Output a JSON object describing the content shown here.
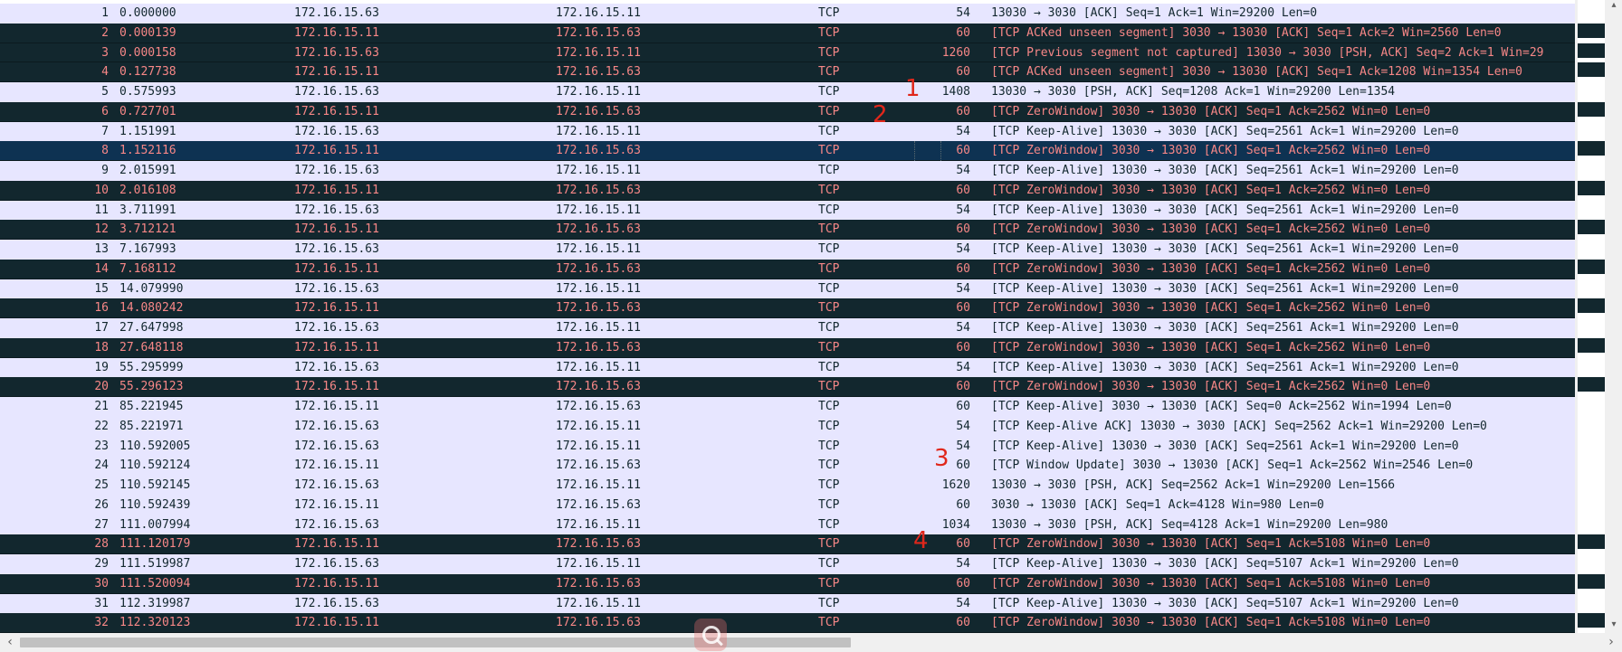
{
  "colors": {
    "light_row_bg": "#e7e6ff",
    "light_row_text": "#12272e",
    "dark_row_bg": "#12272e",
    "dark_row_text": "#f78787",
    "selected_row_bg": "#0e3252",
    "annotation_red": "#e0271b"
  },
  "packets": [
    {
      "no": "1",
      "time": "0.000000",
      "src": "172.16.15.63",
      "dst": "172.16.15.11",
      "proto": "TCP",
      "len": "54",
      "info": "13030 → 3030 [ACK] Seq=1 Ack=1 Win=29200 Len=0",
      "style": "light"
    },
    {
      "no": "2",
      "time": "0.000139",
      "src": "172.16.15.11",
      "dst": "172.16.15.63",
      "proto": "TCP",
      "len": "60",
      "info": "[TCP ACKed unseen segment] 3030 → 13030 [ACK] Seq=1 Ack=2 Win=2560 Len=0",
      "style": "dark"
    },
    {
      "no": "3",
      "time": "0.000158",
      "src": "172.16.15.63",
      "dst": "172.16.15.11",
      "proto": "TCP",
      "len": "1260",
      "info": "[TCP Previous segment not captured] 13030 → 3030 [PSH, ACK] Seq=2 Ack=1 Win=29",
      "style": "dark"
    },
    {
      "no": "4",
      "time": "0.127738",
      "src": "172.16.15.11",
      "dst": "172.16.15.63",
      "proto": "TCP",
      "len": "60",
      "info": "[TCP ACKed unseen segment] 3030 → 13030 [ACK] Seq=1 Ack=1208 Win=1354 Len=0",
      "style": "dark"
    },
    {
      "no": "5",
      "time": "0.575993",
      "src": "172.16.15.63",
      "dst": "172.16.15.11",
      "proto": "TCP",
      "len": "1408",
      "info": "13030 → 3030 [PSH, ACK] Seq=1208 Ack=1 Win=29200 Len=1354",
      "style": "light"
    },
    {
      "no": "6",
      "time": "0.727701",
      "src": "172.16.15.11",
      "dst": "172.16.15.63",
      "proto": "TCP",
      "len": "60",
      "info": "[TCP ZeroWindow] 3030 → 13030 [ACK] Seq=1 Ack=2562 Win=0 Len=0",
      "style": "dark"
    },
    {
      "no": "7",
      "time": "1.151991",
      "src": "172.16.15.63",
      "dst": "172.16.15.11",
      "proto": "TCP",
      "len": "54",
      "info": "[TCP Keep-Alive] 13030 → 3030 [ACK] Seq=2561 Ack=1 Win=29200 Len=0",
      "style": "light"
    },
    {
      "no": "8",
      "time": "1.152116",
      "src": "172.16.15.11",
      "dst": "172.16.15.63",
      "proto": "TCP",
      "len": "60",
      "info": "[TCP ZeroWindow] 3030 → 13030 [ACK] Seq=1 Ack=2562 Win=0 Len=0",
      "style": "selected"
    },
    {
      "no": "9",
      "time": "2.015991",
      "src": "172.16.15.63",
      "dst": "172.16.15.11",
      "proto": "TCP",
      "len": "54",
      "info": "[TCP Keep-Alive] 13030 → 3030 [ACK] Seq=2561 Ack=1 Win=29200 Len=0",
      "style": "light"
    },
    {
      "no": "10",
      "time": "2.016108",
      "src": "172.16.15.11",
      "dst": "172.16.15.63",
      "proto": "TCP",
      "len": "60",
      "info": "[TCP ZeroWindow] 3030 → 13030 [ACK] Seq=1 Ack=2562 Win=0 Len=0",
      "style": "dark"
    },
    {
      "no": "11",
      "time": "3.711991",
      "src": "172.16.15.63",
      "dst": "172.16.15.11",
      "proto": "TCP",
      "len": "54",
      "info": "[TCP Keep-Alive] 13030 → 3030 [ACK] Seq=2561 Ack=1 Win=29200 Len=0",
      "style": "light"
    },
    {
      "no": "12",
      "time": "3.712121",
      "src": "172.16.15.11",
      "dst": "172.16.15.63",
      "proto": "TCP",
      "len": "60",
      "info": "[TCP ZeroWindow] 3030 → 13030 [ACK] Seq=1 Ack=2562 Win=0 Len=0",
      "style": "dark"
    },
    {
      "no": "13",
      "time": "7.167993",
      "src": "172.16.15.63",
      "dst": "172.16.15.11",
      "proto": "TCP",
      "len": "54",
      "info": "[TCP Keep-Alive] 13030 → 3030 [ACK] Seq=2561 Ack=1 Win=29200 Len=0",
      "style": "light"
    },
    {
      "no": "14",
      "time": "7.168112",
      "src": "172.16.15.11",
      "dst": "172.16.15.63",
      "proto": "TCP",
      "len": "60",
      "info": "[TCP ZeroWindow] 3030 → 13030 [ACK] Seq=1 Ack=2562 Win=0 Len=0",
      "style": "dark"
    },
    {
      "no": "15",
      "time": "14.079990",
      "src": "172.16.15.63",
      "dst": "172.16.15.11",
      "proto": "TCP",
      "len": "54",
      "info": "[TCP Keep-Alive] 13030 → 3030 [ACK] Seq=2561 Ack=1 Win=29200 Len=0",
      "style": "light"
    },
    {
      "no": "16",
      "time": "14.080242",
      "src": "172.16.15.11",
      "dst": "172.16.15.63",
      "proto": "TCP",
      "len": "60",
      "info": "[TCP ZeroWindow] 3030 → 13030 [ACK] Seq=1 Ack=2562 Win=0 Len=0",
      "style": "dark"
    },
    {
      "no": "17",
      "time": "27.647998",
      "src": "172.16.15.63",
      "dst": "172.16.15.11",
      "proto": "TCP",
      "len": "54",
      "info": "[TCP Keep-Alive] 13030 → 3030 [ACK] Seq=2561 Ack=1 Win=29200 Len=0",
      "style": "light"
    },
    {
      "no": "18",
      "time": "27.648118",
      "src": "172.16.15.11",
      "dst": "172.16.15.63",
      "proto": "TCP",
      "len": "60",
      "info": "[TCP ZeroWindow] 3030 → 13030 [ACK] Seq=1 Ack=2562 Win=0 Len=0",
      "style": "dark"
    },
    {
      "no": "19",
      "time": "55.295999",
      "src": "172.16.15.63",
      "dst": "172.16.15.11",
      "proto": "TCP",
      "len": "54",
      "info": "[TCP Keep-Alive] 13030 → 3030 [ACK] Seq=2561 Ack=1 Win=29200 Len=0",
      "style": "light"
    },
    {
      "no": "20",
      "time": "55.296123",
      "src": "172.16.15.11",
      "dst": "172.16.15.63",
      "proto": "TCP",
      "len": "60",
      "info": "[TCP ZeroWindow] 3030 → 13030 [ACK] Seq=1 Ack=2562 Win=0 Len=0",
      "style": "dark"
    },
    {
      "no": "21",
      "time": "85.221945",
      "src": "172.16.15.11",
      "dst": "172.16.15.63",
      "proto": "TCP",
      "len": "60",
      "info": "[TCP Keep-Alive] 3030 → 13030 [ACK] Seq=0 Ack=2562 Win=1994 Len=0",
      "style": "light"
    },
    {
      "no": "22",
      "time": "85.221971",
      "src": "172.16.15.63",
      "dst": "172.16.15.11",
      "proto": "TCP",
      "len": "54",
      "info": "[TCP Keep-Alive ACK] 13030 → 3030 [ACK] Seq=2562 Ack=1 Win=29200 Len=0",
      "style": "light"
    },
    {
      "no": "23",
      "time": "110.592005",
      "src": "172.16.15.63",
      "dst": "172.16.15.11",
      "proto": "TCP",
      "len": "54",
      "info": "[TCP Keep-Alive] 13030 → 3030 [ACK] Seq=2561 Ack=1 Win=29200 Len=0",
      "style": "light"
    },
    {
      "no": "24",
      "time": "110.592124",
      "src": "172.16.15.11",
      "dst": "172.16.15.63",
      "proto": "TCP",
      "len": "60",
      "info": "[TCP Window Update] 3030 → 13030 [ACK] Seq=1 Ack=2562 Win=2546 Len=0",
      "style": "light"
    },
    {
      "no": "25",
      "time": "110.592145",
      "src": "172.16.15.63",
      "dst": "172.16.15.11",
      "proto": "TCP",
      "len": "1620",
      "info": "13030 → 3030 [PSH, ACK] Seq=2562 Ack=1 Win=29200 Len=1566",
      "style": "light"
    },
    {
      "no": "26",
      "time": "110.592439",
      "src": "172.16.15.11",
      "dst": "172.16.15.63",
      "proto": "TCP",
      "len": "60",
      "info": "3030 → 13030 [ACK] Seq=1 Ack=4128 Win=980 Len=0",
      "style": "light"
    },
    {
      "no": "27",
      "time": "111.007994",
      "src": "172.16.15.63",
      "dst": "172.16.15.11",
      "proto": "TCP",
      "len": "1034",
      "info": "13030 → 3030 [PSH, ACK] Seq=4128 Ack=1 Win=29200 Len=980",
      "style": "light"
    },
    {
      "no": "28",
      "time": "111.120179",
      "src": "172.16.15.11",
      "dst": "172.16.15.63",
      "proto": "TCP",
      "len": "60",
      "info": "[TCP ZeroWindow] 3030 → 13030 [ACK] Seq=1 Ack=5108 Win=0 Len=0",
      "style": "dark"
    },
    {
      "no": "29",
      "time": "111.519987",
      "src": "172.16.15.63",
      "dst": "172.16.15.11",
      "proto": "TCP",
      "len": "54",
      "info": "[TCP Keep-Alive] 13030 → 3030 [ACK] Seq=5107 Ack=1 Win=29200 Len=0",
      "style": "light"
    },
    {
      "no": "30",
      "time": "111.520094",
      "src": "172.16.15.11",
      "dst": "172.16.15.63",
      "proto": "TCP",
      "len": "60",
      "info": "[TCP ZeroWindow] 3030 → 13030 [ACK] Seq=1 Ack=5108 Win=0 Len=0",
      "style": "dark"
    },
    {
      "no": "31",
      "time": "112.319987",
      "src": "172.16.15.63",
      "dst": "172.16.15.11",
      "proto": "TCP",
      "len": "54",
      "info": "[TCP Keep-Alive] 13030 → 3030 [ACK] Seq=5107 Ack=1 Win=29200 Len=0",
      "style": "light"
    },
    {
      "no": "32",
      "time": "112.320123",
      "src": "172.16.15.11",
      "dst": "172.16.15.63",
      "proto": "TCP",
      "len": "60",
      "info": "[TCP ZeroWindow] 3030 → 13030 [ACK] Seq=1 Ack=5108 Win=0 Len=0",
      "style": "dark"
    }
  ],
  "annotations": [
    "1",
    "2",
    "3",
    "4"
  ],
  "scrollbar": {
    "arrow_up": "▴",
    "arrow_down": "▾",
    "arrow_left": "‹",
    "arrow_right": "›"
  }
}
